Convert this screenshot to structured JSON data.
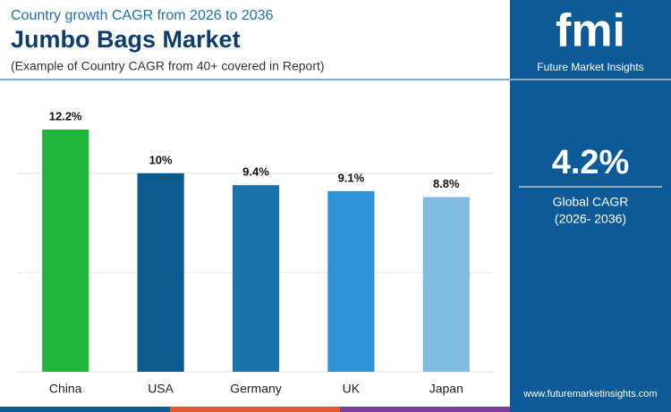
{
  "chart_data": {
    "type": "bar",
    "header": "Country growth CAGR from 2026 to 2036",
    "title": "Jumbo Bags Market",
    "subtitle": "(Example of Country CAGR from 40+ covered in Report)",
    "categories": [
      "China",
      "USA",
      "Germany",
      "UK",
      "Japan"
    ],
    "values": [
      12.2,
      10,
      9.4,
      9.1,
      8.8
    ],
    "value_labels": [
      "12.2%",
      "10%",
      "9.4%",
      "9.1%",
      "8.8%"
    ],
    "colors": [
      "#1fb53a",
      "#0b5b90",
      "#1a72ad",
      "#2e92d6",
      "#80bbe3"
    ],
    "ylim": [
      0,
      14
    ],
    "yticks": [
      0,
      5,
      10
    ],
    "grid": true
  },
  "sidebar": {
    "logo": "fmi",
    "brand": "Future Market Insights",
    "global_value": "4.2%",
    "global_label": "Global CAGR",
    "global_period": "(2026- 2036)",
    "website": "www.futuremarketinsights.com"
  }
}
